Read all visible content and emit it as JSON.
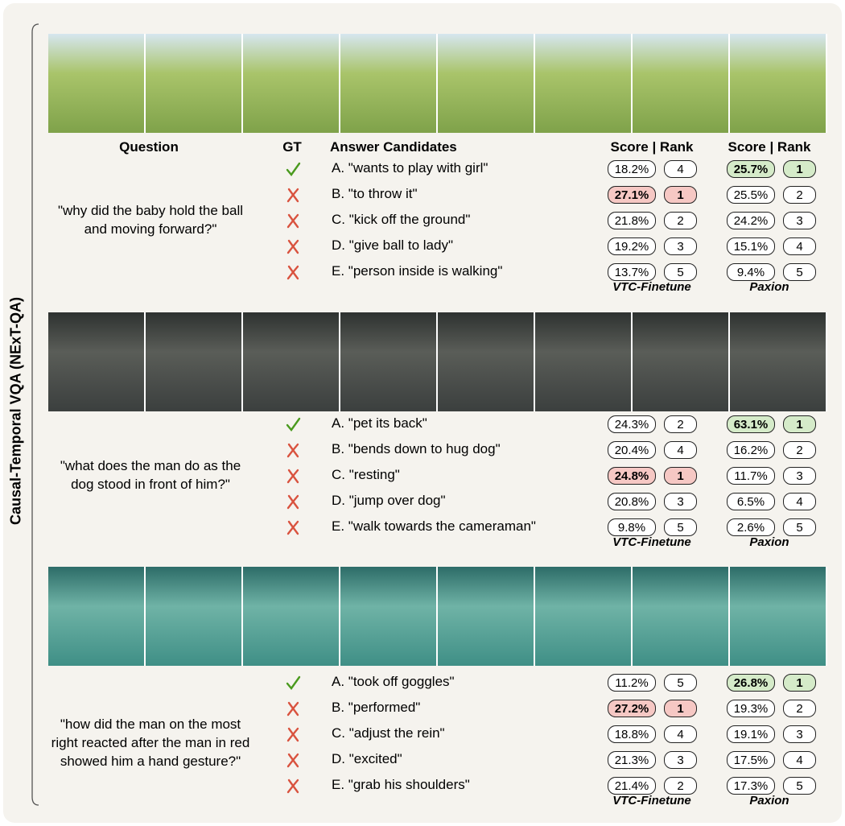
{
  "side_label": "Causal-Temporal VQA (NExT-QA)",
  "headers": {
    "question": "Question",
    "gt": "GT",
    "answers": "Answer Candidates",
    "vtc_score_rank": "Score | Rank",
    "paxion_score_rank": "Score | Rank"
  },
  "examples": [
    {
      "question": "\"why did the baby hold the ball and moving forward?\"",
      "models": [
        "VTC-Finetune",
        "Paxion"
      ],
      "candidates": [
        {
          "label": "A. \"wants to play with girl\"",
          "correct": true,
          "vtc": {
            "score": "18.2%",
            "rank": 4
          },
          "paxion": {
            "score": "25.7%",
            "rank": 1
          }
        },
        {
          "label": "B. \"to throw it\"",
          "correct": false,
          "vtc": {
            "score": "27.1%",
            "rank": 1
          },
          "paxion": {
            "score": "25.5%",
            "rank": 2
          }
        },
        {
          "label": "C. \"kick off the ground\"",
          "correct": false,
          "vtc": {
            "score": "21.8%",
            "rank": 2
          },
          "paxion": {
            "score": "24.2%",
            "rank": 3
          }
        },
        {
          "label": "D. \"give ball to lady\"",
          "correct": false,
          "vtc": {
            "score": "19.2%",
            "rank": 3
          },
          "paxion": {
            "score": "15.1%",
            "rank": 4
          }
        },
        {
          "label": "E. \"person inside is walking\"",
          "correct": false,
          "vtc": {
            "score": "13.7%",
            "rank": 5
          },
          "paxion": {
            "score": "9.4%",
            "rank": 5
          }
        }
      ]
    },
    {
      "question": "\"what does the man do as the dog stood in front of him?\"",
      "models": [
        "VTC-Finetune",
        "Paxion"
      ],
      "candidates": [
        {
          "label": "A. \"pet its back\"",
          "correct": true,
          "vtc": {
            "score": "24.3%",
            "rank": 2
          },
          "paxion": {
            "score": "63.1%",
            "rank": 1
          }
        },
        {
          "label": "B. \"bends down to hug dog\"",
          "correct": false,
          "vtc": {
            "score": "20.4%",
            "rank": 4
          },
          "paxion": {
            "score": "16.2%",
            "rank": 2
          }
        },
        {
          "label": "C. \"resting\"",
          "correct": false,
          "vtc": {
            "score": "24.8%",
            "rank": 1
          },
          "paxion": {
            "score": "11.7%",
            "rank": 3
          }
        },
        {
          "label": "D. \"jump over dog\"",
          "correct": false,
          "vtc": {
            "score": "20.8%",
            "rank": 3
          },
          "paxion": {
            "score": "6.5%",
            "rank": 4
          }
        },
        {
          "label": "E. \"walk towards the cameraman\"",
          "correct": false,
          "vtc": {
            "score": "9.8%",
            "rank": 5
          },
          "paxion": {
            "score": "2.6%",
            "rank": 5
          }
        }
      ]
    },
    {
      "question": "\"how did the man on the most right reacted after the man in red showed him a hand gesture?\"",
      "models": [
        "VTC-Finetune",
        "Paxion"
      ],
      "candidates": [
        {
          "label": "A. \"took off goggles\"",
          "correct": true,
          "vtc": {
            "score": "11.2%",
            "rank": 5
          },
          "paxion": {
            "score": "26.8%",
            "rank": 1
          }
        },
        {
          "label": "B. \"performed\"",
          "correct": false,
          "vtc": {
            "score": "27.2%",
            "rank": 1
          },
          "paxion": {
            "score": "19.3%",
            "rank": 2
          }
        },
        {
          "label": "C. \"adjust the rein\"",
          "correct": false,
          "vtc": {
            "score": "18.8%",
            "rank": 4
          },
          "paxion": {
            "score": "19.1%",
            "rank": 3
          }
        },
        {
          "label": "D. \"excited\"",
          "correct": false,
          "vtc": {
            "score": "21.3%",
            "rank": 3
          },
          "paxion": {
            "score": "17.5%",
            "rank": 4
          }
        },
        {
          "label": "E. \"grab his shoulders\"",
          "correct": false,
          "vtc": {
            "score": "21.4%",
            "rank": 2
          },
          "paxion": {
            "score": "17.3%",
            "rank": 5
          }
        }
      ]
    }
  ]
}
